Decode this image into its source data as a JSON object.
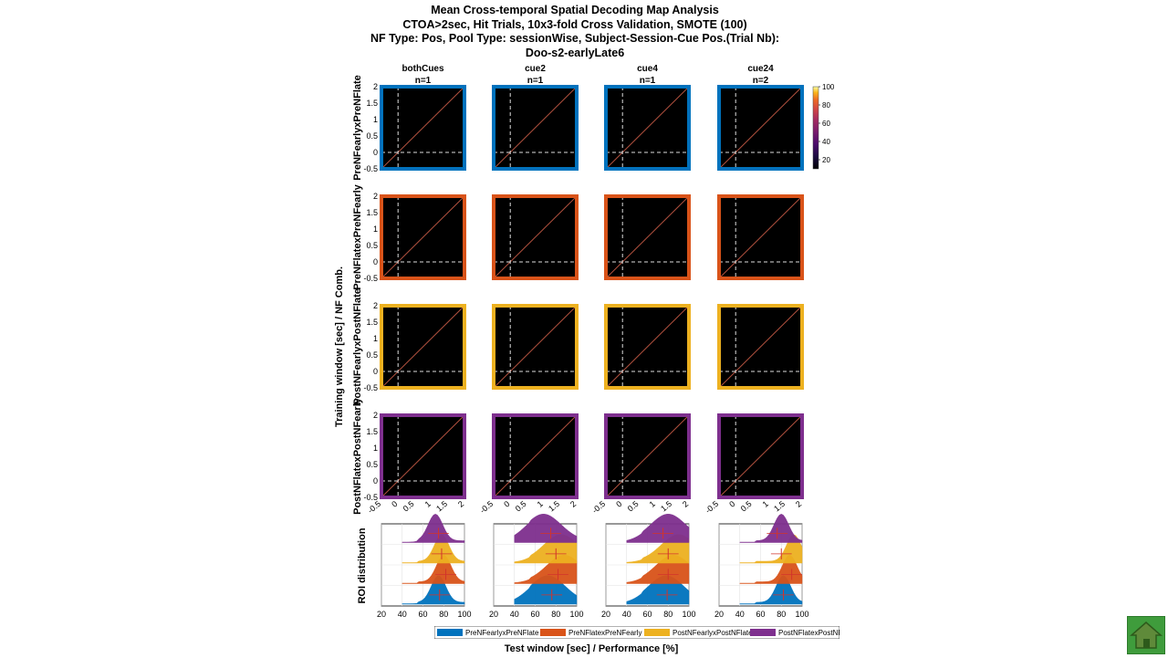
{
  "title_lines": [
    "Mean Cross-temporal Spatial Decoding Map Analysis",
    "CTOA>2sec, Hit Trials, 10x3-fold Cross Validation, SMOTE (100)",
    "NF Type: Pos, Pool Type: sessionWise, Subject-Session-Cue Pos.(Trial Nb):",
    "Doo-s2-earlyLate6"
  ],
  "chart_data": {
    "type": "heatmap",
    "columns": [
      {
        "name": "bothCues",
        "n": "n=1"
      },
      {
        "name": "cue2",
        "n": "n=1"
      },
      {
        "name": "cue4",
        "n": "n=1"
      },
      {
        "name": "cue24",
        "n": "n=2"
      }
    ],
    "rows": [
      {
        "label": "PreNFearlyxPreNFlate",
        "color": "#0072bd"
      },
      {
        "label": "PreNFlatexPreNFearly",
        "color": "#d95319"
      },
      {
        "label": "PostNFearlyxPostNFlate",
        "color": "#edb120"
      },
      {
        "label": "PostNFlatexPostNFearly",
        "color": "#7e2f8e"
      }
    ],
    "heatmap_axes": {
      "x_range": [
        -0.5,
        2
      ],
      "y_range": [
        -0.5,
        2
      ],
      "x_ticks": [
        "-0.5",
        "0",
        "0.5",
        "1",
        "1.5",
        "2"
      ],
      "y_ticks": [
        "2",
        "1.5",
        "1",
        "0.5",
        "0",
        "-0.5"
      ],
      "reference_lines": {
        "x": 0,
        "y": 0
      }
    },
    "colorbar": {
      "range": [
        10,
        100
      ],
      "ticks": [
        "100",
        "80",
        "60",
        "40",
        "20"
      ],
      "colormap": "inferno"
    },
    "ylabel": "Training window [sec] / NF Comb.",
    "xlabel": "Test window [sec] / Performance [%]",
    "roi": {
      "ylabel": "ROI distribution",
      "x_range": [
        20,
        100
      ],
      "x_ticks": [
        "20",
        "40",
        "60",
        "80",
        "100"
      ],
      "ridge_peaks": [
        [
          75,
          72,
          78,
          82
        ],
        [
          80,
          88,
          85,
          88
        ],
        [
          78,
          85,
          90,
          92
        ],
        [
          72,
          68,
          80,
          80
        ]
      ],
      "medians": [
        [
          76,
          76,
          79,
          82
        ],
        [
          82,
          82,
          80,
          90
        ],
        [
          78,
          80,
          80,
          80
        ],
        [
          75,
          75,
          75,
          76
        ]
      ]
    },
    "legend": [
      "PreNFearlyxPreNFlate",
      "PreNFlatexPreNFearly",
      "PostNFearlyxPostNFlate",
      "PostNFlatexPostNFearly"
    ]
  }
}
